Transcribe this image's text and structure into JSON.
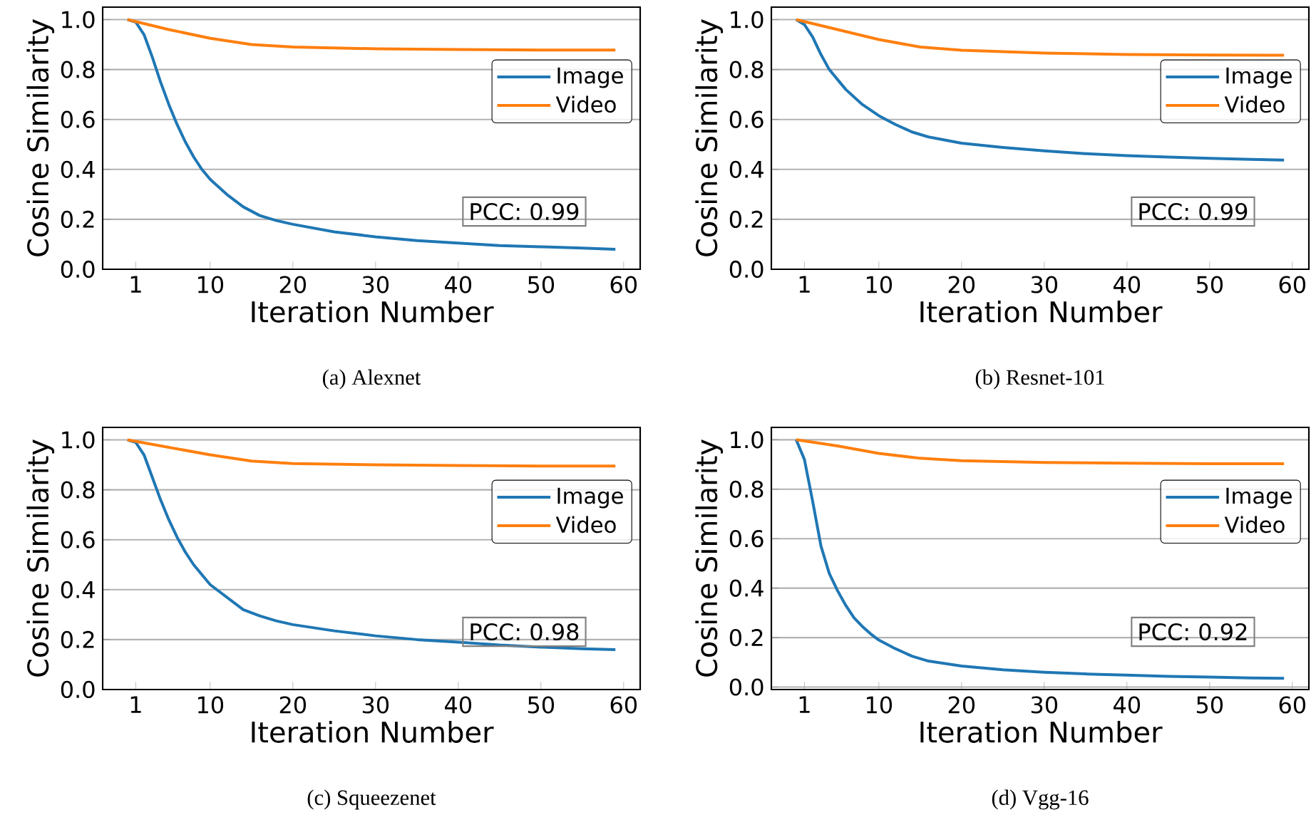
{
  "chart_data": [
    {
      "type": "line",
      "title": "(a) Alexnet",
      "xlabel": "Iteration Number",
      "ylabel": "Cosine Similarity",
      "annotations": [
        "PCC: 0.99"
      ],
      "xlim": [
        -3,
        62
      ],
      "ylim": [
        0,
        1.05
      ],
      "xticks": [
        1,
        10,
        20,
        30,
        40,
        50,
        60
      ],
      "yticks": [
        {
          "value": 0,
          "label": "0.0"
        },
        {
          "value": 0.2,
          "label": "0.2"
        },
        {
          "value": 0.4,
          "label": "0.4"
        },
        {
          "value": 0.6,
          "label": "0.6"
        },
        {
          "value": 0.8,
          "label": "0.8"
        },
        {
          "value": 1.0,
          "label": "1.0"
        }
      ],
      "grid": "y",
      "legend": "top right",
      "series": [
        {
          "name": "Image",
          "color": "#1f77b4",
          "x": [
            0,
            1,
            2,
            3,
            4,
            5,
            6,
            7,
            8,
            9,
            10,
            12,
            14,
            16,
            18,
            20,
            25,
            30,
            35,
            40,
            45,
            50,
            55,
            59
          ],
          "values": [
            1.0,
            0.99,
            0.94,
            0.85,
            0.75,
            0.66,
            0.58,
            0.51,
            0.45,
            0.4,
            0.36,
            0.3,
            0.25,
            0.215,
            0.195,
            0.18,
            0.15,
            0.13,
            0.115,
            0.105,
            0.095,
            0.09,
            0.085,
            0.08
          ]
        },
        {
          "name": "Video",
          "color": "#ff7f0e",
          "x": [
            0,
            5,
            10,
            15,
            20,
            30,
            40,
            50,
            59
          ],
          "values": [
            1.0,
            0.96,
            0.925,
            0.9,
            0.89,
            0.883,
            0.88,
            0.878,
            0.878
          ]
        }
      ]
    },
    {
      "type": "line",
      "title": "(b) Resnet-101",
      "xlabel": "Iteration Number",
      "ylabel": "Cosine Similarity",
      "annotations": [
        "PCC: 0.99"
      ],
      "xlim": [
        -3,
        62
      ],
      "ylim": [
        0,
        1.05
      ],
      "xticks": [
        1,
        10,
        20,
        30,
        40,
        50,
        60
      ],
      "yticks": [
        {
          "value": 0,
          "label": "0.0"
        },
        {
          "value": 0.2,
          "label": "0.2"
        },
        {
          "value": 0.4,
          "label": "0.4"
        },
        {
          "value": 0.6,
          "label": "0.6"
        },
        {
          "value": 0.8,
          "label": "0.8"
        },
        {
          "value": 1.0,
          "label": "1.0"
        }
      ],
      "grid": "y",
      "legend": "top right",
      "series": [
        {
          "name": "Image",
          "color": "#1f77b4",
          "x": [
            0,
            1,
            2,
            3,
            4,
            5,
            6,
            8,
            10,
            12,
            14,
            16,
            20,
            25,
            30,
            35,
            40,
            45,
            50,
            55,
            59
          ],
          "values": [
            1.0,
            0.98,
            0.93,
            0.86,
            0.8,
            0.76,
            0.72,
            0.66,
            0.615,
            0.58,
            0.55,
            0.53,
            0.505,
            0.488,
            0.474,
            0.463,
            0.455,
            0.449,
            0.444,
            0.44,
            0.437
          ]
        },
        {
          "name": "Video",
          "color": "#ff7f0e",
          "x": [
            0,
            5,
            10,
            15,
            20,
            30,
            40,
            50,
            59
          ],
          "values": [
            1.0,
            0.96,
            0.92,
            0.89,
            0.877,
            0.866,
            0.86,
            0.858,
            0.857
          ]
        }
      ]
    },
    {
      "type": "line",
      "title": "(c) Squeezenet",
      "xlabel": "Iteration Number",
      "ylabel": "Cosine Similarity",
      "annotations": [
        "PCC: 0.98"
      ],
      "xlim": [
        -3,
        62
      ],
      "ylim": [
        0,
        1.05
      ],
      "xticks": [
        1,
        10,
        20,
        30,
        40,
        50,
        60
      ],
      "yticks": [
        {
          "value": 0,
          "label": "0.0"
        },
        {
          "value": 0.2,
          "label": "0.2"
        },
        {
          "value": 0.4,
          "label": "0.4"
        },
        {
          "value": 0.6,
          "label": "0.6"
        },
        {
          "value": 0.8,
          "label": "0.8"
        },
        {
          "value": 1.0,
          "label": "1.0"
        }
      ],
      "grid": "y",
      "legend": "top right",
      "series": [
        {
          "name": "Image",
          "color": "#1f77b4",
          "x": [
            0,
            1,
            2,
            3,
            4,
            5,
            6,
            7,
            8,
            9,
            10,
            12,
            14,
            16,
            18,
            20,
            25,
            30,
            35,
            40,
            45,
            50,
            55,
            59
          ],
          "values": [
            1.0,
            0.99,
            0.94,
            0.85,
            0.76,
            0.68,
            0.61,
            0.55,
            0.5,
            0.46,
            0.42,
            0.37,
            0.32,
            0.295,
            0.275,
            0.26,
            0.235,
            0.215,
            0.2,
            0.19,
            0.178,
            0.17,
            0.163,
            0.16
          ]
        },
        {
          "name": "Video",
          "color": "#ff7f0e",
          "x": [
            0,
            5,
            10,
            15,
            20,
            30,
            40,
            50,
            59
          ],
          "values": [
            1.0,
            0.97,
            0.94,
            0.915,
            0.905,
            0.9,
            0.897,
            0.895,
            0.895
          ]
        }
      ]
    },
    {
      "type": "line",
      "title": "(d) Vgg-16",
      "xlabel": "Iteration Number",
      "ylabel": "Cosine Similarity",
      "annotations": [
        "PCC: 0.92"
      ],
      "xlim": [
        -3,
        62
      ],
      "ylim": [
        -0.01,
        1.05
      ],
      "xticks": [
        1,
        10,
        20,
        30,
        40,
        50,
        60
      ],
      "yticks": [
        {
          "value": 0,
          "label": "0.0"
        },
        {
          "value": 0.2,
          "label": "0.2"
        },
        {
          "value": 0.4,
          "label": "0.4"
        },
        {
          "value": 0.6,
          "label": "0.6"
        },
        {
          "value": 0.8,
          "label": "0.8"
        },
        {
          "value": 1.0,
          "label": "1.0"
        }
      ],
      "grid": "y",
      "legend": "top right",
      "series": [
        {
          "name": "Image",
          "color": "#1f77b4",
          "x": [
            0,
            1,
            2,
            3,
            4,
            5,
            6,
            7,
            8,
            9,
            10,
            12,
            14,
            16,
            18,
            20,
            25,
            30,
            35,
            40,
            45,
            50,
            55,
            59
          ],
          "values": [
            1.0,
            0.92,
            0.75,
            0.57,
            0.46,
            0.39,
            0.33,
            0.28,
            0.245,
            0.215,
            0.19,
            0.155,
            0.125,
            0.105,
            0.095,
            0.085,
            0.07,
            0.06,
            0.053,
            0.048,
            0.043,
            0.04,
            0.037,
            0.035
          ]
        },
        {
          "name": "Video",
          "color": "#ff7f0e",
          "x": [
            0,
            5,
            10,
            15,
            20,
            30,
            40,
            50,
            59
          ],
          "values": [
            1.0,
            0.975,
            0.945,
            0.925,
            0.915,
            0.908,
            0.905,
            0.903,
            0.903
          ]
        }
      ]
    }
  ]
}
